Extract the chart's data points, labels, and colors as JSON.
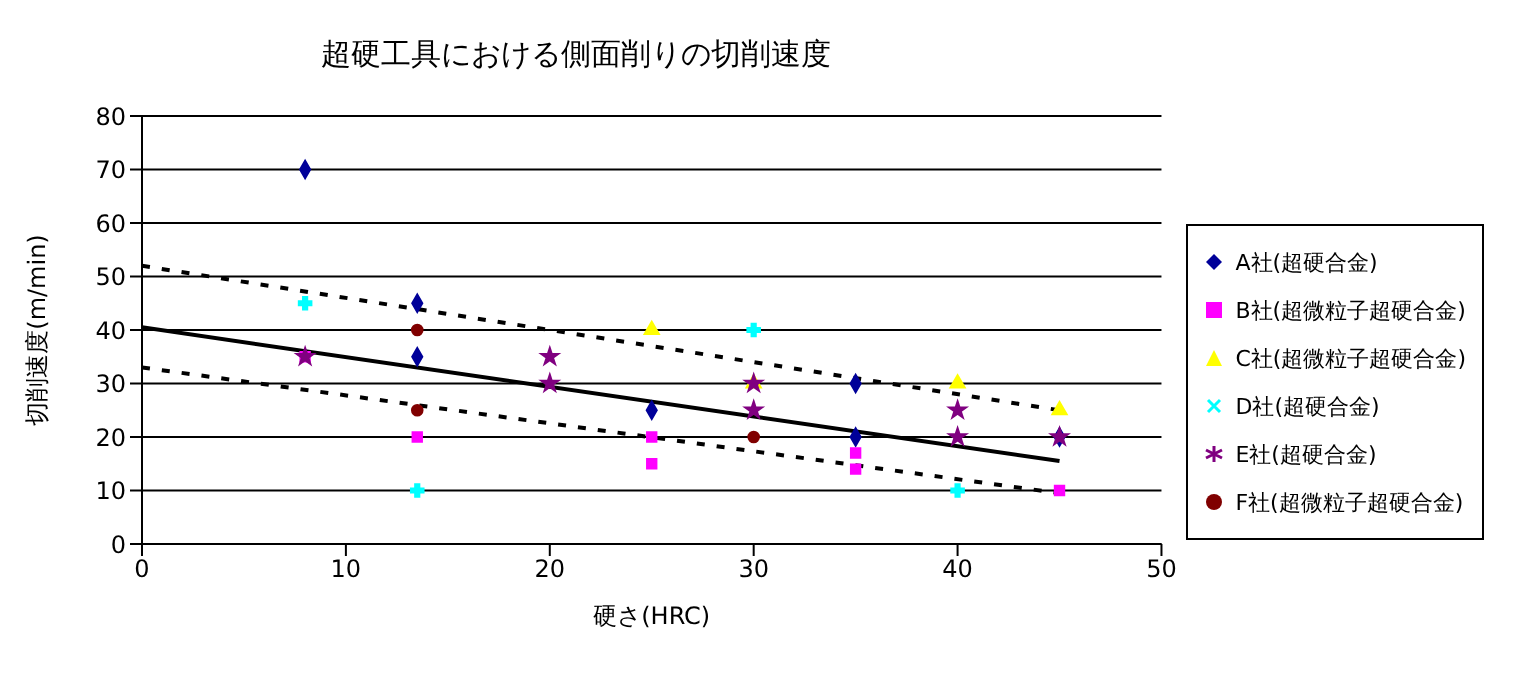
{
  "chart_data": {
    "type": "scatter",
    "title": "超硬工具における側面削りの切削速度",
    "xlabel": "硬さ(HRC)",
    "ylabel": "切削速度(m/min)",
    "xlim": [
      0,
      50
    ],
    "xticks": [
      0,
      10,
      20,
      30,
      40,
      50
    ],
    "ylim": [
      0,
      80
    ],
    "yticks": [
      0,
      10,
      20,
      30,
      40,
      50,
      60,
      70,
      80
    ],
    "grid": "y",
    "legend": "right",
    "series": [
      {
        "name": "A社(超硬合金)",
        "color": "#000099",
        "marker": "diamond",
        "x": [
          8,
          13.5,
          13.5,
          25,
          35,
          35,
          45
        ],
        "values": [
          70,
          45,
          35,
          25,
          30,
          20,
          20
        ]
      },
      {
        "name": "B社(超微粒子超硬合金)",
        "color": "#ff00ff",
        "marker": "square",
        "x": [
          8,
          13.5,
          25,
          25,
          35,
          35,
          45
        ],
        "values": [
          35,
          20,
          20,
          15,
          17,
          14,
          10
        ]
      },
      {
        "name": "C社(超微粒子超硬合金)",
        "color": "#ffff00",
        "marker": "triangle",
        "x": [
          25,
          30,
          40,
          45
        ],
        "values": [
          40,
          30,
          30,
          25
        ]
      },
      {
        "name": "D社(超硬合金)",
        "color": "#00ffff",
        "marker": "cross",
        "x": [
          8,
          13.5,
          30,
          40
        ],
        "values": [
          45,
          10,
          40,
          10
        ]
      },
      {
        "name": "E社(超硬合金)",
        "color": "#800080",
        "marker": "star",
        "x": [
          8,
          20,
          20,
          30,
          30,
          40,
          40,
          45
        ],
        "values": [
          35,
          35,
          30,
          30,
          25,
          25,
          20,
          20
        ]
      },
      {
        "name": "F社(超微粒子超硬合金)",
        "color": "#800000",
        "marker": "circle",
        "x": [
          13.5,
          13.5,
          30
        ],
        "values": [
          40,
          25,
          20
        ]
      },
      {
        "type": "line",
        "color": "#000000",
        "line_style": "solid",
        "x": [
          0,
          45
        ],
        "values": [
          40.5,
          15.5
        ]
      },
      {
        "type": "line",
        "color": "#000000",
        "line_style": "dashed",
        "x": [
          0,
          45
        ],
        "values": [
          52,
          25
        ]
      },
      {
        "type": "line",
        "color": "#000000",
        "line_style": "dashed",
        "x": [
          0,
          45
        ],
        "values": [
          33,
          9.5
        ]
      }
    ]
  }
}
